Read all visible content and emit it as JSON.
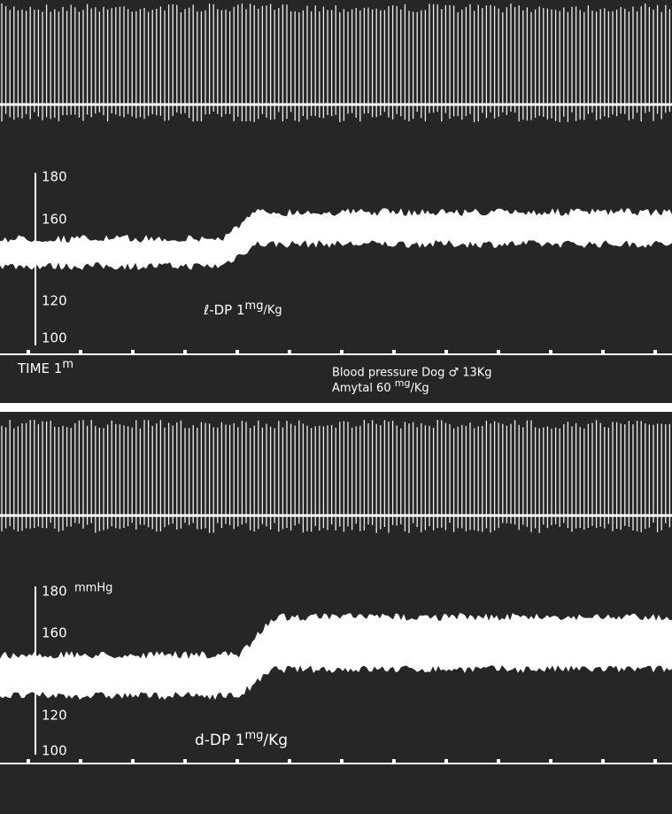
{
  "panels": [
    {
      "scale": [
        "180",
        "160",
        "120",
        "100"
      ],
      "unit": null,
      "drug": {
        "prefix": "ℓ-DP 1",
        "sup": "mg",
        "suffix": "/Kg"
      },
      "time": {
        "prefix": "TIME 1",
        "sup": "m"
      },
      "subject": "Blood pressure Dog ♂ 13Kg",
      "anesthesia": {
        "prefix": "Amytal 60 ",
        "sup": "mg",
        "suffix": "/Kg"
      }
    },
    {
      "scale": [
        "180",
        "160",
        "120",
        "100"
      ],
      "unit": "mmHg",
      "drug": {
        "prefix": "d-DP 1",
        "sup": "mg",
        "suffix": "/Kg"
      }
    }
  ]
}
